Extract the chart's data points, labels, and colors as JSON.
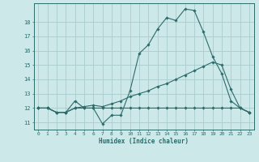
{
  "xlabel": "Humidex (Indice chaleur)",
  "bg_color": "#cce8e8",
  "grid_color": "#aacccc",
  "line_color": "#2d6b6b",
  "xlim": [
    -0.5,
    23.5
  ],
  "ylim": [
    10.5,
    19.3
  ],
  "yticks": [
    11,
    12,
    13,
    14,
    15,
    16,
    17,
    18
  ],
  "xticks": [
    0,
    1,
    2,
    3,
    4,
    5,
    6,
    7,
    8,
    9,
    10,
    11,
    12,
    13,
    14,
    15,
    16,
    17,
    18,
    19,
    20,
    21,
    22,
    23
  ],
  "series": [
    [
      12.0,
      12.0,
      11.7,
      11.7,
      12.5,
      12.0,
      12.0,
      10.9,
      11.5,
      11.5,
      13.2,
      15.8,
      16.4,
      17.5,
      18.3,
      18.1,
      18.9,
      18.8,
      17.3,
      15.6,
      14.4,
      12.5,
      12.0,
      11.7
    ],
    [
      12.0,
      12.0,
      11.7,
      11.7,
      12.0,
      12.1,
      12.2,
      12.1,
      12.3,
      12.5,
      12.8,
      13.0,
      13.2,
      13.5,
      13.7,
      14.0,
      14.3,
      14.6,
      14.9,
      15.2,
      15.0,
      13.3,
      12.0,
      11.7
    ],
    [
      12.0,
      12.0,
      11.7,
      11.7,
      12.0,
      12.0,
      12.0,
      12.0,
      12.0,
      12.0,
      12.0,
      12.0,
      12.0,
      12.0,
      12.0,
      12.0,
      12.0,
      12.0,
      12.0,
      12.0,
      12.0,
      12.0,
      12.0,
      11.7
    ]
  ]
}
